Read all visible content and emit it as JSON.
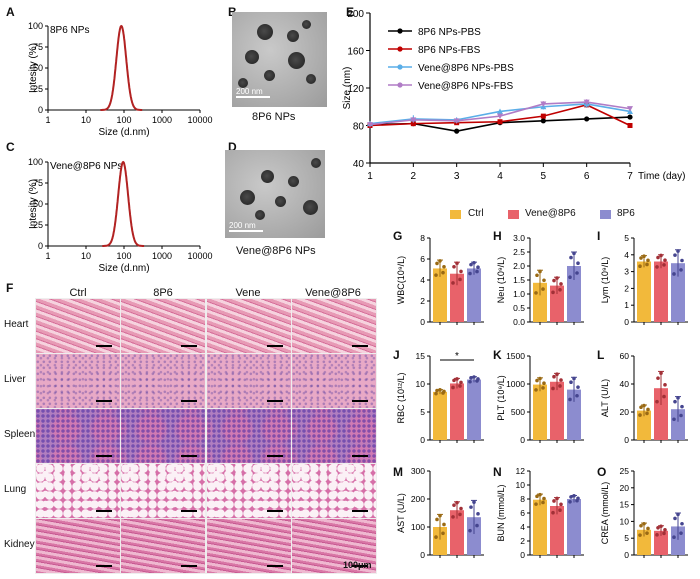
{
  "panel_letters": {
    "a": "A",
    "b": "B",
    "c": "C",
    "d": "D",
    "e": "E",
    "f": "F",
    "g": "G",
    "h": "H",
    "i": "I",
    "j": "J",
    "k": "K",
    "l": "L",
    "m": "M",
    "n": "N",
    "o": "O"
  },
  "colors": {
    "ctrl": "#f2b93b",
    "vene_8p6": "#e8626a",
    "p6": "#8c8ccf",
    "dls": "#b22222",
    "tem_bg": "#aaaaaa"
  },
  "tem": {
    "b_scale": "200 nm",
    "b_caption": "8P6 NPs",
    "d_scale": "200 nm",
    "d_caption": "Vene@8P6 NPs"
  },
  "histology": {
    "columns": [
      "Ctrl",
      "8P6",
      "Vene",
      "Vene@8P6"
    ],
    "rows": [
      "Heart",
      "Liver",
      "Spleen",
      "Lung",
      "Kidney"
    ],
    "scale_label": "100μm"
  },
  "legend_bottom": [
    "Ctrl",
    "Vene@8P6",
    "8P6"
  ],
  "chart_data": [
    {
      "id": "A",
      "type": "line",
      "title": "8P6 NPs",
      "xlabel": "Size (d.nm)",
      "ylabel": "Intesity (%)",
      "xscale": "log",
      "xlim": [
        1,
        10000
      ],
      "ylim": [
        0,
        100
      ],
      "xticks": [
        "1",
        "10",
        "100",
        "1000",
        "10000"
      ],
      "yticks": [
        "0",
        "25",
        "50",
        "75",
        "100"
      ],
      "peak_x": 85,
      "peak_y": 100,
      "log_sigma": 0.13
    },
    {
      "id": "C",
      "type": "line",
      "title": "Vene@8P6 NPs",
      "xlabel": "Size (d.nm)",
      "ylabel": "Intesity (%)",
      "xscale": "log",
      "xlim": [
        1,
        10000
      ],
      "ylim": [
        0,
        100
      ],
      "xticks": [
        "1",
        "10",
        "100",
        "1000",
        "10000"
      ],
      "yticks": [
        "0",
        "25",
        "50",
        "75",
        "100"
      ],
      "peak_x": 95,
      "peak_y": 100,
      "log_sigma": 0.13
    },
    {
      "id": "E",
      "type": "line",
      "xlabel": "Time (day)",
      "ylabel": "Size (nm)",
      "x": [
        1,
        2,
        3,
        4,
        5,
        6,
        7
      ],
      "xlim": [
        1,
        7
      ],
      "ylim": [
        40,
        200
      ],
      "yticks": [
        "40",
        "80",
        "120",
        "160",
        "200"
      ],
      "series": [
        {
          "name": "8P6 NPs-PBS",
          "color": "#000000",
          "marker": "circle",
          "values": [
            81,
            82,
            74,
            83,
            85,
            87,
            89
          ],
          "errors": [
            1,
            1,
            1,
            1,
            1,
            1,
            1
          ]
        },
        {
          "name": "8P6 NPs-FBS",
          "color": "#c00000",
          "marker": "square",
          "values": [
            80,
            82,
            83,
            84,
            90,
            102,
            80
          ],
          "errors": [
            1,
            1,
            1,
            2,
            2,
            3,
            1
          ]
        },
        {
          "name": "Vene@8P6 NPs-PBS",
          "color": "#5aaee8",
          "marker": "triangle",
          "values": [
            82,
            87,
            86,
            95,
            100,
            103,
            95
          ],
          "errors": [
            1,
            4,
            2,
            2,
            3,
            4,
            2
          ]
        },
        {
          "name": "Vene@8P6 NPs-FBS",
          "color": "#b07cc6",
          "marker": "triangle-down",
          "values": [
            81,
            86,
            85,
            90,
            103,
            105,
            98
          ],
          "errors": [
            1,
            2,
            2,
            2,
            3,
            3,
            2
          ]
        }
      ]
    },
    {
      "id": "G",
      "type": "bar",
      "ylabel": "WBC(10⁹/L)",
      "ylim": [
        0,
        8
      ],
      "yticks": [
        "0",
        "2",
        "4",
        "6",
        "8"
      ],
      "categories": [
        "Ctrl",
        "Vene@8P6",
        "8P6"
      ],
      "values": [
        5.1,
        4.6,
        5.1
      ],
      "errors": [
        0.8,
        1.1,
        0.6
      ]
    },
    {
      "id": "H",
      "type": "bar",
      "ylabel": "Neu (10⁹/L)",
      "ylim": [
        0,
        3
      ],
      "yticks": [
        "0.0",
        "0.5",
        "1.0",
        "1.5",
        "2.0",
        "2.5",
        "3.0"
      ],
      "categories": [
        "Ctrl",
        "Vene@8P6",
        "8P6"
      ],
      "values": [
        1.4,
        1.3,
        2.0
      ],
      "errors": [
        0.45,
        0.3,
        0.5
      ]
    },
    {
      "id": "I",
      "type": "bar",
      "ylabel": "Lym (10⁹/L)",
      "ylim": [
        0,
        5
      ],
      "yticks": [
        "0",
        "1",
        "2",
        "3",
        "4",
        "5"
      ],
      "categories": [
        "Ctrl",
        "Vene@8P6",
        "8P6"
      ],
      "values": [
        3.6,
        3.6,
        3.5
      ],
      "errors": [
        0.35,
        0.4,
        0.8
      ]
    },
    {
      "id": "J",
      "type": "bar",
      "ylabel": "RBC (10¹²/L)",
      "ylim": [
        0,
        15
      ],
      "yticks": [
        "0",
        "5",
        "10",
        "15"
      ],
      "categories": [
        "Ctrl",
        "Vene@8P6",
        "8P6"
      ],
      "values": [
        8.6,
        10.1,
        10.8
      ],
      "errors": [
        0.4,
        0.9,
        0.5
      ],
      "significance": {
        "between": [
          0,
          2
        ],
        "label": "*"
      }
    },
    {
      "id": "K",
      "type": "bar",
      "ylabel": "PLT (10⁹/L)",
      "ylim": [
        0,
        1500
      ],
      "yticks": [
        "0",
        "500",
        "1000",
        "1500"
      ],
      "categories": [
        "Ctrl",
        "Vene@8P6",
        "8P6"
      ],
      "values": [
        990,
        1040,
        900
      ],
      "errors": [
        120,
        150,
        220
      ]
    },
    {
      "id": "L",
      "type": "bar",
      "ylabel": "ALT (U/L)",
      "ylim": [
        0,
        60
      ],
      "yticks": [
        "0",
        "20",
        "40",
        "60"
      ],
      "categories": [
        "Ctrl",
        "Vene@8P6",
        "8P6"
      ],
      "values": [
        21,
        37,
        22
      ],
      "errors": [
        4,
        12,
        9
      ]
    },
    {
      "id": "M",
      "type": "bar",
      "ylabel": "AST (U/L)",
      "ylim": [
        0,
        300
      ],
      "yticks": [
        "0",
        "100",
        "200",
        "300"
      ],
      "categories": [
        "Ctrl",
        "Vene@8P6",
        "8P6"
      ],
      "values": [
        100,
        160,
        135
      ],
      "errors": [
        45,
        30,
        60
      ]
    },
    {
      "id": "N",
      "type": "bar",
      "ylabel": "BUN (mmol/L)",
      "ylim": [
        0,
        12
      ],
      "yticks": [
        "0",
        "2",
        "4",
        "6",
        "8",
        "10",
        "12"
      ],
      "categories": [
        "Ctrl",
        "Vene@8P6",
        "8P6"
      ],
      "values": [
        7.9,
        7.0,
        8.0
      ],
      "errors": [
        0.8,
        1.2,
        0.5
      ]
    },
    {
      "id": "O",
      "type": "bar",
      "ylabel": "CREA (mmol/L)",
      "ylim": [
        0,
        25
      ],
      "yticks": [
        "0",
        "5",
        "10",
        "15",
        "20",
        "25"
      ],
      "categories": [
        "Ctrl",
        "Vene@8P6",
        "8P6"
      ],
      "values": [
        7.5,
        7.2,
        8.5
      ],
      "errors": [
        2,
        1.5,
        4
      ]
    }
  ]
}
